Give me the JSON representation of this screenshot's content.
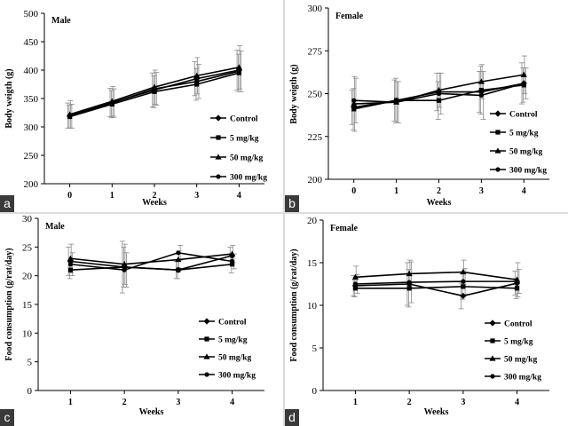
{
  "chart_data": [
    {
      "type": "line",
      "panel_label": "a",
      "title": "Male",
      "xlabel": "Weeks",
      "ylabel": "Body weigth (g)",
      "x": [
        0,
        1,
        2,
        3,
        4
      ],
      "xlim": [
        -0.6,
        4.6
      ],
      "ylim": [
        200,
        500
      ],
      "yticks": [
        200,
        250,
        300,
        350,
        400,
        450,
        500
      ],
      "legend_position": "right",
      "series": [
        {
          "name": "Control",
          "marker": "diamond",
          "values": [
            320,
            343,
            365,
            385,
            400
          ],
          "errors": [
            22,
            25,
            30,
            30,
            35
          ]
        },
        {
          "name": "5 mg/kg",
          "marker": "square",
          "values": [
            318,
            340,
            362,
            375,
            395
          ],
          "errors": [
            20,
            24,
            28,
            28,
            33
          ]
        },
        {
          "name": "50 mg/kg",
          "marker": "triangle",
          "values": [
            322,
            345,
            370,
            390,
            405
          ],
          "errors": [
            24,
            26,
            30,
            32,
            38
          ]
        },
        {
          "name": "300 mg/kg",
          "marker": "circle",
          "values": [
            319,
            342,
            367,
            380,
            398
          ],
          "errors": [
            21,
            25,
            29,
            30,
            36
          ]
        }
      ]
    },
    {
      "type": "line",
      "panel_label": "b",
      "title": "Female",
      "xlabel": "Weeks",
      "ylabel": "Body weigth (g)",
      "x": [
        0,
        1,
        2,
        3,
        4
      ],
      "xlim": [
        -0.6,
        4.6
      ],
      "ylim": [
        200,
        300
      ],
      "yticks": [
        200,
        225,
        250,
        275,
        300
      ],
      "legend_position": "right",
      "series": [
        {
          "name": "Control",
          "marker": "diamond",
          "values": [
            242,
            246,
            251,
            251,
            256
          ],
          "errors": [
            10,
            12,
            11,
            12,
            12
          ]
        },
        {
          "name": "5 mg/kg",
          "marker": "square",
          "values": [
            241,
            246,
            246,
            252,
            255
          ],
          "errors": [
            12,
            13,
            11,
            14,
            10
          ]
        },
        {
          "name": "50 mg/kg",
          "marker": "triangle",
          "values": [
            244,
            245,
            252,
            257,
            261
          ],
          "errors": [
            16,
            12,
            10,
            10,
            11
          ]
        },
        {
          "name": "300 mg/kg",
          "marker": "circle",
          "values": [
            246,
            245,
            250,
            249,
            256
          ],
          "errors": [
            13,
            12,
            12,
            14,
            9
          ]
        }
      ]
    },
    {
      "type": "line",
      "panel_label": "c",
      "title": "Male",
      "xlabel": "Weeks",
      "ylabel": "Food consumption (g/rat/day)",
      "x": [
        1,
        2,
        3,
        4
      ],
      "xlim": [
        0.4,
        4.6
      ],
      "ylim": [
        0,
        30
      ],
      "yticks": [
        0,
        5,
        10,
        15,
        20,
        25,
        30
      ],
      "legend_position": "right",
      "series": [
        {
          "name": "Control",
          "marker": "diamond",
          "values": [
            22.5,
            21.5,
            21,
            23.5
          ],
          "errors": [
            2.5,
            4.5,
            1.5,
            1.5
          ]
        },
        {
          "name": "5 mg/kg",
          "marker": "square",
          "values": [
            21,
            21.5,
            21,
            22
          ],
          "errors": [
            1.5,
            3.5,
            1.5,
            1.5
          ]
        },
        {
          "name": "50 mg/kg",
          "marker": "triangle",
          "values": [
            23,
            22,
            22.8,
            23.8
          ],
          "errors": [
            2.5,
            3.5,
            1.5,
            1.5
          ]
        },
        {
          "name": "300 mg/kg",
          "marker": "circle",
          "values": [
            22,
            21,
            24,
            22.5
          ],
          "errors": [
            2,
            3,
            1.3,
            1.3
          ]
        }
      ]
    },
    {
      "type": "line",
      "panel_label": "d",
      "title": "Female",
      "xlabel": "Weeks",
      "ylabel": "Food consumption (g/rat/day)",
      "x": [
        1,
        2,
        3,
        4
      ],
      "xlim": [
        0.4,
        4.6
      ],
      "ylim": [
        0,
        20
      ],
      "yticks": [
        0,
        5,
        10,
        15,
        20
      ],
      "legend_position": "right",
      "series": [
        {
          "name": "Control",
          "marker": "diamond",
          "values": [
            12.3,
            12.5,
            11.1,
            12.6
          ],
          "errors": [
            1.2,
            2.5,
            1.5,
            1.4
          ]
        },
        {
          "name": "5 mg/kg",
          "marker": "square",
          "values": [
            12,
            12,
            12.2,
            12
          ],
          "errors": [
            1,
            2.2,
            1.5,
            1.2
          ]
        },
        {
          "name": "50 mg/kg",
          "marker": "triangle",
          "values": [
            13.3,
            13.7,
            13.9,
            13
          ],
          "errors": [
            1.3,
            1.6,
            1.4,
            2
          ]
        },
        {
          "name": "300 mg/kg",
          "marker": "circle",
          "values": [
            12.5,
            12.7,
            12.8,
            12.8
          ],
          "errors": [
            1.1,
            2.4,
            1.5,
            1.4
          ]
        }
      ]
    }
  ]
}
